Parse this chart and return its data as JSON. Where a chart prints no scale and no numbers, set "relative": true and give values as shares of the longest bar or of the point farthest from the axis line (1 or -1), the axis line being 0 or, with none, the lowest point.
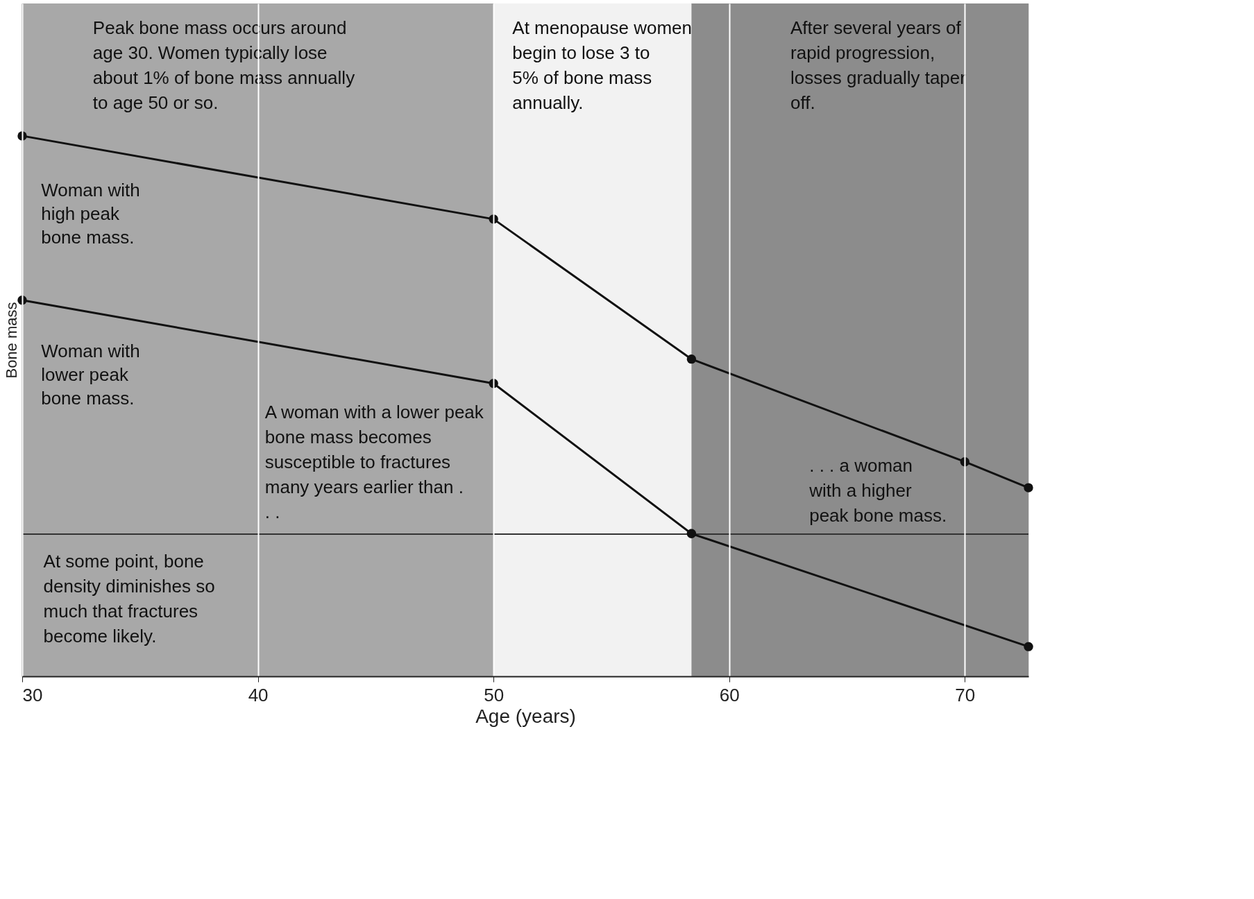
{
  "chart_data": {
    "type": "line",
    "relative": true,
    "xlabel": "Age (years)",
    "ylabel": "Bone mass",
    "xlim": [
      30,
      72.7
    ],
    "xticks": [
      30,
      40,
      50,
      60,
      70
    ],
    "grid": "x",
    "marker": "circle",
    "line_style": "solid",
    "legend": false,
    "series": [
      {
        "name": "Woman with high peak bone mass.",
        "color": "#111111",
        "x": [
          30,
          50,
          58.4,
          70,
          72.7
        ],
        "values": [
          1,
          0.846,
          0.587,
          0.397,
          0.349
        ]
      },
      {
        "name": "Woman with lower peak bone mass.",
        "color": "#111111",
        "x": [
          30,
          50,
          58.4,
          72.7
        ],
        "values": [
          0.696,
          0.542,
          0.264,
          0.055
        ]
      }
    ],
    "ref_lines": [
      {
        "axis": "y",
        "value": 0.263,
        "color": "#333333"
      }
    ],
    "bands": [
      {
        "axis": "x",
        "from": 30,
        "to": 50,
        "color": "#a8a8a8"
      },
      {
        "axis": "x",
        "from": 50,
        "to": 58.4,
        "color": "#f2f2f2"
      },
      {
        "axis": "x",
        "from": 58.4,
        "to": 72.7,
        "color": "#8c8c8c"
      }
    ],
    "annotations": [
      "Peak bone mass occurs around age 30. Women typically lose about 1% of bone mass annually to age 50 or so.",
      "At menopause women begin to lose 3 to 5% of bone mass annually.",
      "After several years of rapid progression, losses gradually taper off.",
      "A woman with a lower peak bone mass becomes susceptible to fractures many years earlier than . . .",
      ". . . a woman with a higher peak bone mass.",
      "At some point, bone density diminishes so much that fractures become likely."
    ]
  }
}
